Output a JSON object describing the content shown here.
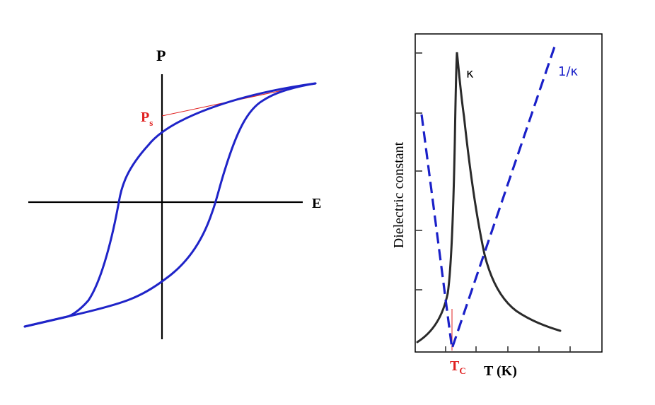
{
  "hysteresis": {
    "y_axis_label": "P",
    "x_axis_label": "E",
    "saturation_label": "P",
    "saturation_subscript": "s",
    "loop_color": "#1f24c8",
    "tangent_color": "#e02020"
  },
  "dielectric": {
    "y_axis_label": "Dielectric constant",
    "x_axis_label": "T (K)",
    "tc_label": "T",
    "tc_subscript": "C",
    "kappa_label": "κ",
    "inverse_label": "1/κ",
    "kappa_color": "#2a2a2a",
    "inverse_color": "#1a20c8",
    "tc_color": "#e02020"
  }
}
